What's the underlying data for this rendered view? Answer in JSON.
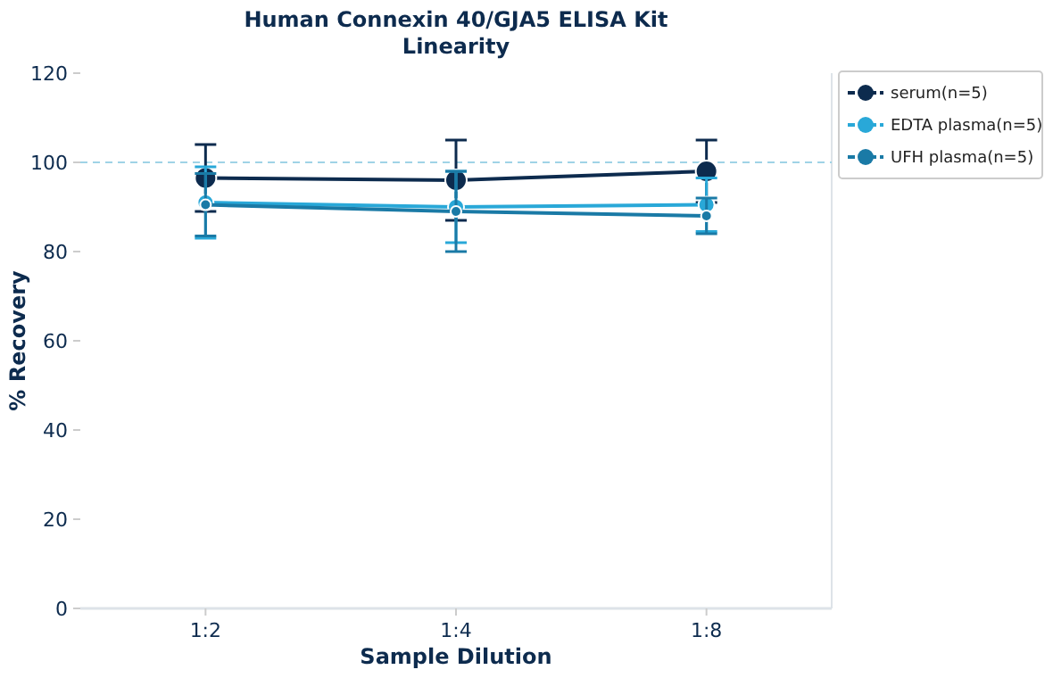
{
  "chart_data": {
    "type": "line",
    "title": "Human Connexin 40/GJA5 ELISA Kit",
    "subtitle": "Linearity",
    "xlabel": "Sample Dilution",
    "ylabel": "% Recovery",
    "categories": [
      "1:2",
      "1:4",
      "1:8"
    ],
    "ylim": [
      0,
      120
    ],
    "yticks": [
      0,
      20,
      40,
      60,
      80,
      100,
      120
    ],
    "marker": "circle",
    "legend": "top right",
    "ref_lines": [
      {
        "axis": "y",
        "value": 100,
        "color": "#9fd3e6",
        "line_style": "dashed"
      }
    ],
    "series": [
      {
        "name": "serum(n=5)",
        "color": "#0d2b4e",
        "values": [
          96.5,
          96,
          98
        ],
        "errors": [
          7.5,
          9,
          7
        ]
      },
      {
        "name": "EDTA plasma(n=5)",
        "color": "#29a8d8",
        "values": [
          91,
          90,
          90.5
        ],
        "errors": [
          8,
          8,
          6
        ]
      },
      {
        "name": "UFH plasma(n=5)",
        "color": "#1a7aa6",
        "values": [
          90.5,
          89,
          88
        ],
        "errors": [
          7,
          9,
          4
        ]
      }
    ]
  }
}
